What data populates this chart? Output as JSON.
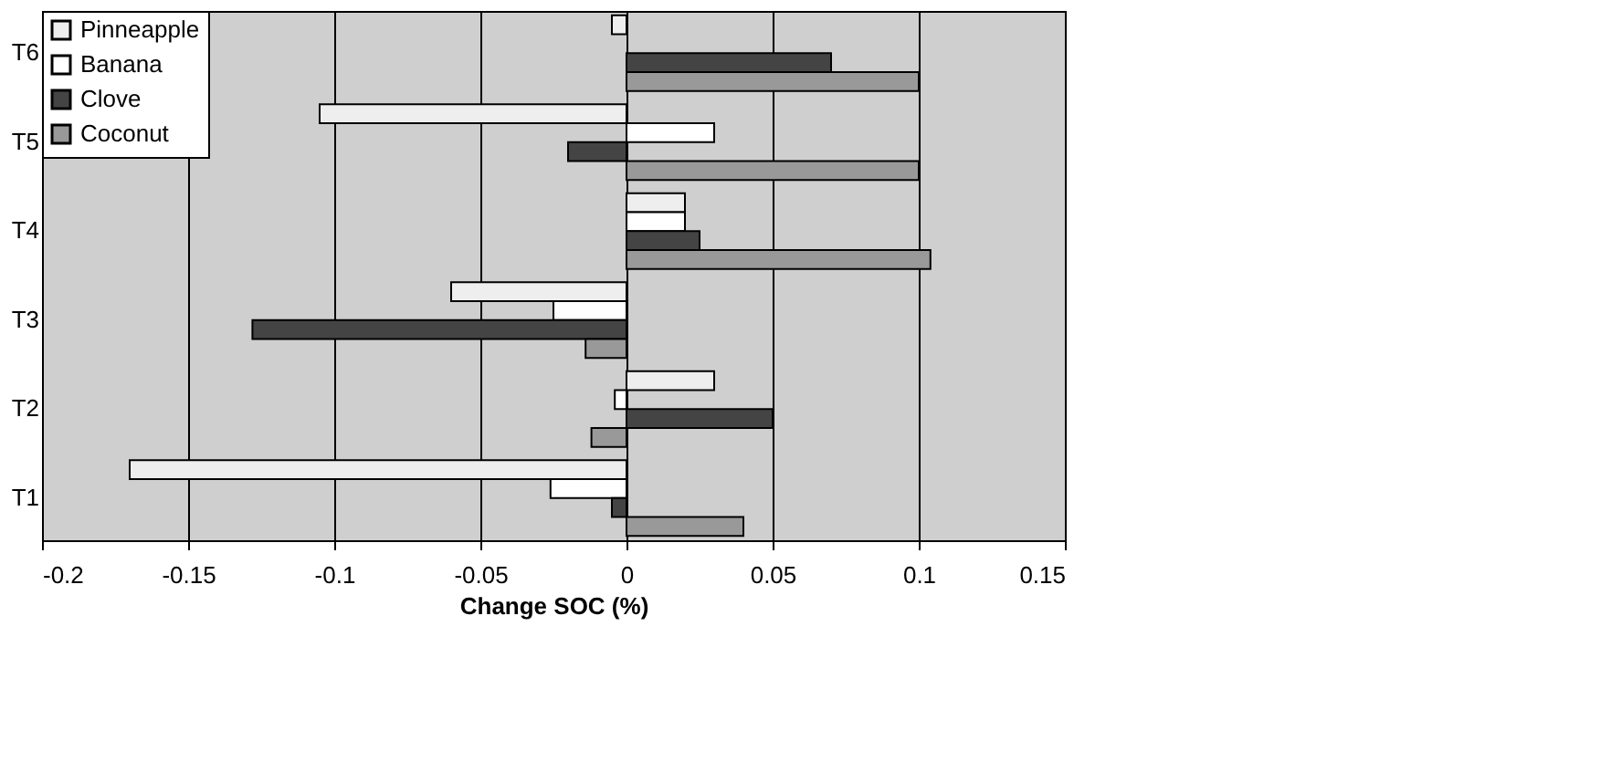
{
  "chart_data": {
    "type": "bar",
    "orientation": "horizontal",
    "xlabel": "Change SOC (%)",
    "categories": [
      "T6",
      "T5",
      "T4",
      "T3",
      "T2",
      "T1"
    ],
    "series": [
      {
        "name": "Pinneapple",
        "color": "#eeeeee",
        "values": [
          -0.005,
          -0.105,
          0.02,
          -0.06,
          0.03,
          -0.17
        ]
      },
      {
        "name": "Banana",
        "color": "#ffffff",
        "values": [
          null,
          0.03,
          0.02,
          -0.025,
          -0.004,
          -0.026
        ]
      },
      {
        "name": "Clove",
        "color": "#444444",
        "values": [
          0.07,
          -0.02,
          0.025,
          -0.128,
          0.05,
          -0.005
        ]
      },
      {
        "name": "Coconut",
        "color": "#999999",
        "values": [
          0.1,
          0.1,
          0.104,
          -0.014,
          -0.012,
          0.04
        ]
      }
    ],
    "xlim": [
      -0.2,
      0.15
    ],
    "xticks": [
      -0.2,
      -0.15,
      -0.1,
      -0.05,
      0,
      0.05,
      0.1,
      0.15
    ],
    "grid": "x",
    "legend": "top left"
  }
}
